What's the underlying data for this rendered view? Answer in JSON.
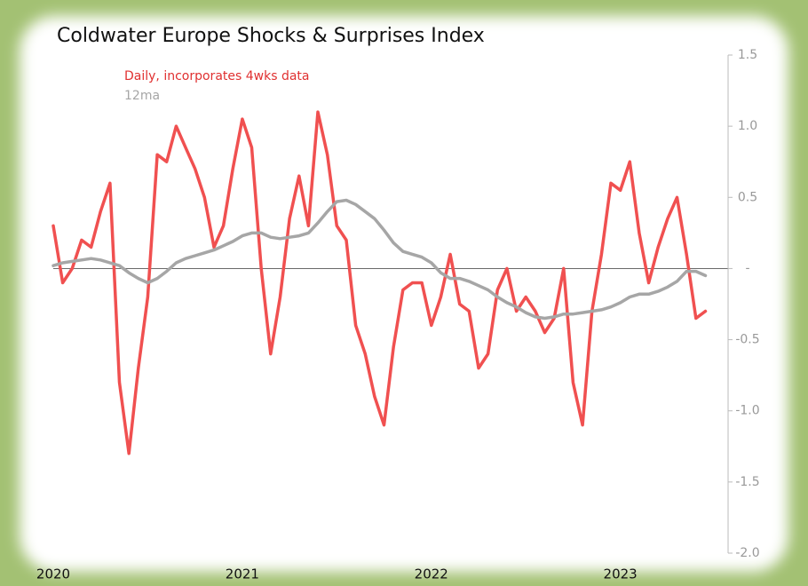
{
  "chart_data": {
    "type": "line",
    "title": "Coldwater Europe Shocks & Surprises Index",
    "x": [
      2020,
      2020.05,
      2020.1,
      2020.15,
      2020.2,
      2020.25,
      2020.3,
      2020.35,
      2020.4,
      2020.45,
      2020.5,
      2020.55,
      2020.6,
      2020.65,
      2020.7,
      2020.75,
      2020.8,
      2020.85,
      2020.9,
      2020.95,
      2021,
      2021.05,
      2021.1,
      2021.15,
      2021.2,
      2021.25,
      2021.3,
      2021.35,
      2021.4,
      2021.45,
      2021.5,
      2021.55,
      2021.6,
      2021.65,
      2021.7,
      2021.75,
      2021.8,
      2021.85,
      2021.9,
      2021.95,
      2022,
      2022.05,
      2022.1,
      2022.15,
      2022.2,
      2022.25,
      2022.3,
      2022.35,
      2022.4,
      2022.45,
      2022.5,
      2022.55,
      2022.6,
      2022.65,
      2022.7,
      2022.75,
      2022.8,
      2022.85,
      2022.9,
      2022.95,
      2023,
      2023.05,
      2023.1,
      2023.15,
      2023.2,
      2023.25,
      2023.3,
      2023.35,
      2023.4,
      2023.45
    ],
    "series": [
      {
        "name": "Daily, incorporates 4wks data",
        "color": "#f05050",
        "values": [
          0.3,
          -0.1,
          0.0,
          0.2,
          0.15,
          0.4,
          0.6,
          -0.8,
          -1.3,
          -0.7,
          -0.2,
          0.8,
          0.75,
          1.0,
          0.85,
          0.7,
          0.5,
          0.15,
          0.3,
          0.7,
          1.05,
          0.85,
          0.0,
          -0.6,
          -0.2,
          0.35,
          0.65,
          0.3,
          1.1,
          0.8,
          0.3,
          0.2,
          -0.4,
          -0.6,
          -0.9,
          -1.1,
          -0.55,
          -0.15,
          -0.1,
          -0.1,
          -0.4,
          -0.2,
          0.1,
          -0.25,
          -0.3,
          -0.7,
          -0.6,
          -0.15,
          0.0,
          -0.3,
          -0.2,
          -0.3,
          -0.45,
          -0.35,
          0.0,
          -0.8,
          -1.1,
          -0.3,
          0.1,
          0.6,
          0.55,
          0.75,
          0.25,
          -0.1,
          0.15,
          0.35,
          0.5,
          0.1,
          -0.35,
          -0.3
        ]
      },
      {
        "name": "12ma",
        "color": "#a6a6a6",
        "values": [
          0.02,
          0.04,
          0.05,
          0.06,
          0.07,
          0.06,
          0.04,
          0.02,
          -0.03,
          -0.07,
          -0.1,
          -0.07,
          -0.02,
          0.04,
          0.07,
          0.09,
          0.11,
          0.13,
          0.16,
          0.19,
          0.23,
          0.25,
          0.25,
          0.22,
          0.21,
          0.22,
          0.23,
          0.25,
          0.32,
          0.4,
          0.47,
          0.48,
          0.45,
          0.4,
          0.35,
          0.27,
          0.18,
          0.12,
          0.1,
          0.08,
          0.04,
          -0.03,
          -0.07,
          -0.07,
          -0.09,
          -0.12,
          -0.15,
          -0.2,
          -0.24,
          -0.27,
          -0.31,
          -0.34,
          -0.35,
          -0.34,
          -0.32,
          -0.32,
          -0.31,
          -0.3,
          -0.29,
          -0.27,
          -0.24,
          -0.2,
          -0.18,
          -0.18,
          -0.16,
          -0.13,
          -0.09,
          -0.02,
          -0.02,
          -0.05
        ]
      }
    ],
    "xlim": [
      2020,
      2023.57
    ],
    "xticks": [
      2020,
      2021,
      2022,
      2023
    ],
    "ylim": [
      -2,
      1.5
    ],
    "yticks": [
      1.5,
      {
        "value": 1,
        "label": "1.0"
      },
      0.5,
      {
        "value": 0,
        "label": "-"
      },
      -0.5,
      {
        "value": -1,
        "label": "-1.0"
      },
      -1.5,
      {
        "value": -2,
        "label": "-2.0"
      }
    ]
  }
}
